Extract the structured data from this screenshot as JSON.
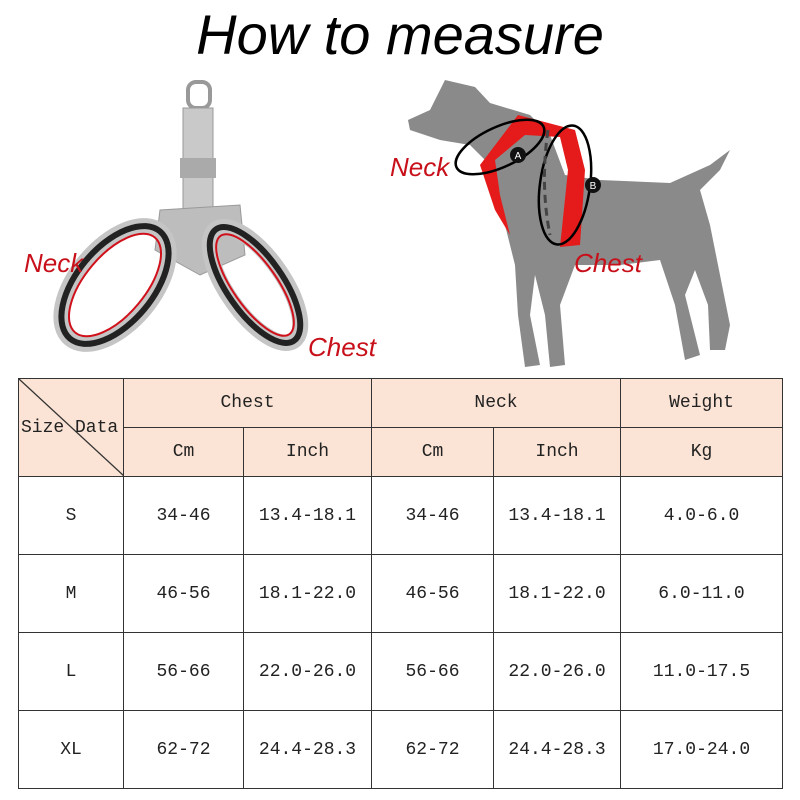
{
  "title": "How to measure",
  "labels": {
    "neck": "Neck",
    "chest": "Chest",
    "marker_a": "A",
    "marker_b": "B"
  },
  "colors": {
    "accent": "#c8101a",
    "header_bg": "#fbe4d5",
    "dog": "#8a8a8a"
  },
  "table": {
    "corner": "Size Data",
    "groups": [
      "Chest",
      "Neck",
      "Weight"
    ],
    "units": [
      "Cm",
      "Inch",
      "Cm",
      "Inch",
      "Kg"
    ],
    "rows": [
      {
        "size": "S",
        "chest_cm": "34-46",
        "chest_in": "13.4-18.1",
        "neck_cm": "34-46",
        "neck_in": "13.4-18.1",
        "weight": "4.0-6.0"
      },
      {
        "size": "M",
        "chest_cm": "46-56",
        "chest_in": "18.1-22.0",
        "neck_cm": "46-56",
        "neck_in": "18.1-22.0",
        "weight": "6.0-11.0"
      },
      {
        "size": "L",
        "chest_cm": "56-66",
        "chest_in": "22.0-26.0",
        "neck_cm": "56-66",
        "neck_in": "22.0-26.0",
        "weight": "11.0-17.5"
      },
      {
        "size": "XL",
        "chest_cm": "62-72",
        "chest_in": "24.4-28.3",
        "neck_cm": "62-72",
        "neck_in": "24.4-28.3",
        "weight": "17.0-24.0"
      }
    ]
  }
}
